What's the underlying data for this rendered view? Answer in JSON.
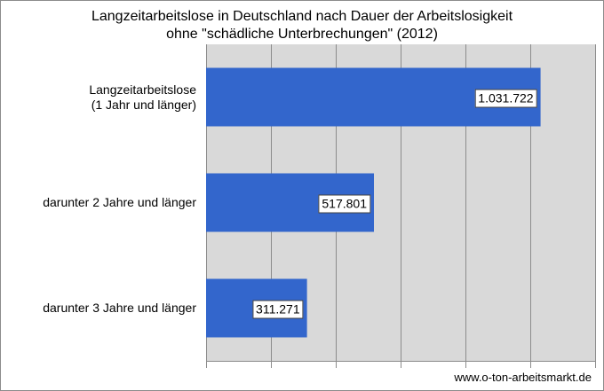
{
  "chart_data": {
    "type": "bar",
    "orientation": "horizontal",
    "title": [
      "Langzeitarbeitslose in Deutschland nach Dauer der Arbeitslosigkeit",
      "ohne \"schädliche Unterbrechungen\" (2012)"
    ],
    "categories": [
      [
        "Langzeitarbeitslose",
        "(1 Jahr und länger)"
      ],
      [
        "darunter 2 Jahre und länger"
      ],
      [
        "darunter 3 Jahre und länger"
      ]
    ],
    "values": [
      1031722,
      517801,
      311271
    ],
    "value_labels": [
      "1.031.722",
      "517.801",
      "311.271"
    ],
    "xlim": [
      0,
      1200000
    ],
    "x_gridlines": [
      0,
      200000,
      400000,
      600000,
      800000,
      1000000,
      1200000
    ],
    "tick_labels_shown": false,
    "grid": true,
    "legend": "none",
    "bar_color": "#3366cc",
    "plot_background": "#d9d9d9"
  },
  "source": "www.o-ton-arbeitsmarkt.de"
}
